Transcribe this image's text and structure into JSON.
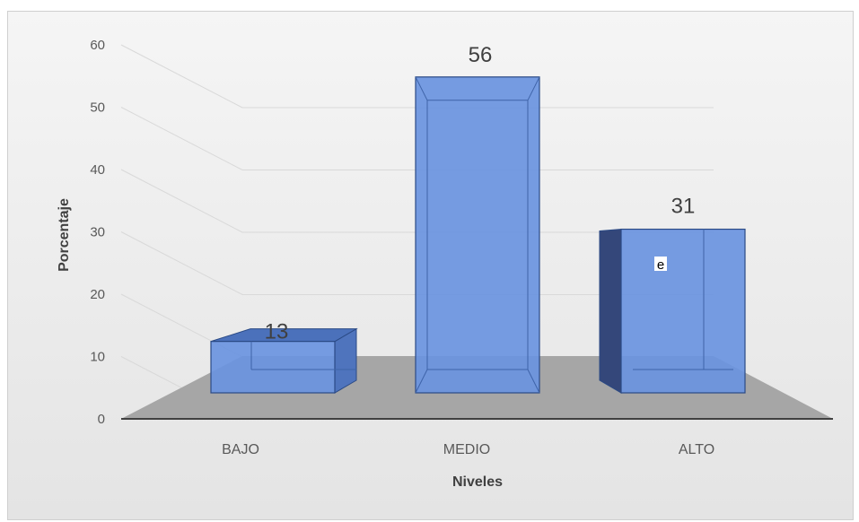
{
  "chart_data": {
    "type": "bar",
    "categories": [
      "BAJO",
      "MEDIO",
      "ALTO"
    ],
    "values": [
      13,
      56,
      31
    ],
    "data_labels": [
      "13",
      "56",
      "31"
    ],
    "xlabel": "Niveles",
    "ylabel": "Porcentaje",
    "ylim": [
      0,
      60
    ],
    "yticks": [
      "0",
      "10",
      "20",
      "30",
      "40",
      "50",
      "60"
    ],
    "grid": true,
    "legend": "none",
    "style": "3d-column",
    "bar_color": "#6a94e0",
    "bar_dark_color": "#2b4a85",
    "floor_color": "#a6a6a6",
    "annotation": "e"
  }
}
